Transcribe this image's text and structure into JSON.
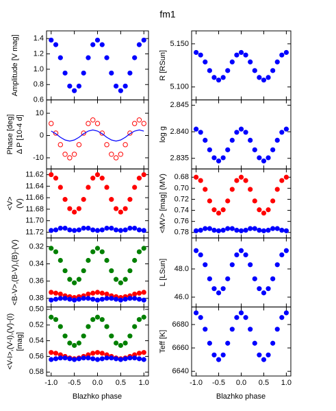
{
  "title": "fm1",
  "xlabel": "Blazhko phase",
  "xlim": [
    -1.1,
    1.1
  ],
  "xticks": [
    {
      "value": -1,
      "label": "-1.0"
    },
    {
      "value": -0.5,
      "label": "-0.5"
    },
    {
      "value": 0,
      "label": "0.0"
    },
    {
      "value": 0.5,
      "label": "0.5"
    },
    {
      "value": 1,
      "label": "1.0"
    }
  ],
  "x": [
    -1.0,
    -0.9,
    -0.8,
    -0.7,
    -0.6,
    -0.5,
    -0.4,
    -0.3,
    -0.2,
    -0.1,
    0.0,
    0.1,
    0.2,
    0.3,
    0.4,
    0.5,
    0.6,
    0.7,
    0.8,
    0.9,
    1.0
  ],
  "chart_data": [
    {
      "type": "scatter",
      "ylabel": [
        "Amplitude [V mag]"
      ],
      "ylim": [
        0.6,
        1.5
      ],
      "invert": false,
      "yticks": [
        0.6,
        0.8,
        {
          "value": 1,
          "label": "1.0"
        },
        1.2,
        1.4
      ],
      "series": [
        {
          "color": "#0000ff",
          "style": "dots",
          "values": [
            1.38,
            1.32,
            1.15,
            0.95,
            0.78,
            0.72,
            0.78,
            0.95,
            1.15,
            1.32,
            1.38,
            1.32,
            1.15,
            0.95,
            0.78,
            0.72,
            0.78,
            0.95,
            1.15,
            1.32,
            1.38
          ]
        }
      ]
    },
    {
      "type": "scatter",
      "ylabel": [
        "Phase [deg]",
        "Δ P [10-4 d]"
      ],
      "ylim": [
        -15,
        16
      ],
      "invert": false,
      "yticks": [
        -10,
        0,
        10
      ],
      "series": [
        {
          "color": "#ff0000",
          "style": "circles",
          "values": [
            5.4,
            1.1,
            -4.1,
            -8.4,
            -10,
            -8.4,
            -4.1,
            1.1,
            5.4,
            7,
            5.4,
            1.1,
            -4.1,
            -8.4,
            -10,
            -8.4,
            -4.1,
            1.1,
            5.4,
            7,
            5.4
          ]
        },
        {
          "color": "#0000ff",
          "style": "line",
          "values": [
            2.0,
            0.8,
            -0.8,
            -2.0,
            -2.5,
            -2.0,
            -0.8,
            0.8,
            2.0,
            2.5,
            2.0,
            0.8,
            -0.8,
            -2.0,
            -2.5,
            -2.0,
            -0.8,
            0.8,
            2.0,
            2.5,
            2.0
          ]
        }
      ]
    },
    {
      "type": "scatter",
      "ylabel": [
        "<V>",
        "(V)"
      ],
      "ylim": [
        11.61,
        11.73
      ],
      "invert": true,
      "yticks": [
        11.62,
        11.64,
        11.66,
        11.68,
        {
          "value": 11.7,
          "label": "11.70"
        },
        11.72
      ],
      "series": [
        {
          "color": "#ff0000",
          "style": "dots",
          "values": [
            11.62,
            11.626,
            11.642,
            11.663,
            11.679,
            11.685,
            11.679,
            11.663,
            11.642,
            11.626,
            11.62,
            11.626,
            11.642,
            11.663,
            11.679,
            11.685,
            11.679,
            11.663,
            11.642,
            11.626,
            11.62
          ]
        },
        {
          "color": "#0000ff",
          "style": "dots",
          "values": [
            11.717,
            11.716,
            11.713,
            11.713,
            11.716,
            11.717,
            11.716,
            11.713,
            11.713,
            11.716,
            11.717,
            11.716,
            11.713,
            11.713,
            11.716,
            11.717,
            11.716,
            11.713,
            11.713,
            11.716,
            11.717
          ]
        }
      ]
    },
    {
      "type": "scatter",
      "ylabel": [
        "<B-V>,(B-V),(B)-(V)"
      ],
      "ylim": [
        0.31,
        0.39
      ],
      "invert": true,
      "yticks": [
        0.32,
        0.34,
        0.36,
        0.38
      ],
      "series": [
        {
          "color": "#008000",
          "style": "dots",
          "values": [
            0.322,
            0.326,
            0.336,
            0.348,
            0.358,
            0.362,
            0.358,
            0.348,
            0.336,
            0.326,
            0.322,
            0.326,
            0.336,
            0.348,
            0.358,
            0.362,
            0.358,
            0.348,
            0.336,
            0.326,
            0.322
          ]
        },
        {
          "color": "#ff0000",
          "style": "dots",
          "values": [
            0.373,
            0.374,
            0.375,
            0.377,
            0.378,
            0.379,
            0.378,
            0.377,
            0.375,
            0.374,
            0.373,
            0.374,
            0.375,
            0.377,
            0.378,
            0.379,
            0.378,
            0.377,
            0.375,
            0.374,
            0.373
          ]
        },
        {
          "color": "#0000ff",
          "style": "dots",
          "values": [
            0.382,
            0.381,
            0.38,
            0.38,
            0.381,
            0.382,
            0.381,
            0.38,
            0.38,
            0.381,
            0.382,
            0.381,
            0.38,
            0.38,
            0.381,
            0.382,
            0.381,
            0.38,
            0.38,
            0.381,
            0.382
          ]
        }
      ]
    },
    {
      "type": "scatter",
      "ylabel": [
        "<V-I>,(V-I),(V)-(I)",
        "[mag]"
      ],
      "ylim": [
        0.497,
        0.585
      ],
      "invert": true,
      "yticks": [
        {
          "value": 0.5,
          "label": "0.50"
        },
        0.52,
        0.54,
        0.56,
        0.58
      ],
      "series": [
        {
          "color": "#008000",
          "style": "dots",
          "values": [
            0.51,
            0.513,
            0.522,
            0.534,
            0.543,
            0.546,
            0.543,
            0.534,
            0.522,
            0.513,
            0.51,
            0.513,
            0.522,
            0.534,
            0.543,
            0.546,
            0.543,
            0.534,
            0.522,
            0.513,
            0.51
          ]
        },
        {
          "color": "#ff0000",
          "style": "dots",
          "values": [
            0.555,
            0.556,
            0.558,
            0.56,
            0.562,
            0.563,
            0.562,
            0.56,
            0.558,
            0.556,
            0.555,
            0.556,
            0.558,
            0.56,
            0.562,
            0.563,
            0.562,
            0.56,
            0.558,
            0.556,
            0.555
          ]
        },
        {
          "color": "#0000ff",
          "style": "dots",
          "values": [
            0.564,
            0.563,
            0.562,
            0.562,
            0.563,
            0.564,
            0.563,
            0.562,
            0.562,
            0.563,
            0.564,
            0.563,
            0.562,
            0.562,
            0.563,
            0.564,
            0.563,
            0.562,
            0.562,
            0.563,
            0.564
          ]
        }
      ]
    },
    {
      "type": "scatter",
      "ylabel": [
        "R [RSun]"
      ],
      "ylim": [
        5.085,
        5.165
      ],
      "invert": false,
      "yticks": [
        {
          "value": 5.15,
          "label": "5.150"
        },
        {
          "value": 5.1,
          "label": "5.100"
        }
      ],
      "series": [
        {
          "color": "#0000ff",
          "style": "dots",
          "values": [
            5.14,
            5.137,
            5.129,
            5.119,
            5.111,
            5.108,
            5.111,
            5.119,
            5.129,
            5.137,
            5.14,
            5.137,
            5.129,
            5.119,
            5.111,
            5.108,
            5.111,
            5.119,
            5.129,
            5.137,
            5.14
          ]
        }
      ]
    },
    {
      "type": "scatter",
      "ylabel": [
        "log g"
      ],
      "ylim": [
        2.833,
        2.846
      ],
      "invert": false,
      "yticks": [
        2.845,
        {
          "value": 2.84,
          "label": "2.840"
        },
        2.835
      ],
      "series": [
        {
          "color": "#0000ff",
          "style": "dots",
          "values": [
            2.8405,
            2.8399,
            2.8384,
            2.8366,
            2.8351,
            2.8345,
            2.8351,
            2.8366,
            2.8384,
            2.8399,
            2.8405,
            2.8399,
            2.8384,
            2.8366,
            2.8351,
            2.8345,
            2.8351,
            2.8366,
            2.8384,
            2.8399,
            2.8405
          ]
        }
      ]
    },
    {
      "type": "scatter",
      "ylabel": [
        "<MV> [mag] (MV)"
      ],
      "ylim": [
        0.665,
        0.79
      ],
      "invert": true,
      "yticks": [
        0.68,
        {
          "value": 0.7,
          "label": "0.70"
        },
        0.72,
        0.74,
        0.76,
        0.78
      ],
      "series": [
        {
          "color": "#ff0000",
          "style": "dots",
          "values": [
            0.68,
            0.686,
            0.702,
            0.723,
            0.739,
            0.745,
            0.739,
            0.723,
            0.702,
            0.686,
            0.68,
            0.686,
            0.702,
            0.723,
            0.739,
            0.745,
            0.739,
            0.723,
            0.702,
            0.686,
            0.68
          ]
        },
        {
          "color": "#0000ff",
          "style": "dots",
          "values": [
            0.777,
            0.776,
            0.773,
            0.773,
            0.776,
            0.777,
            0.776,
            0.773,
            0.773,
            0.776,
            0.777,
            0.776,
            0.773,
            0.773,
            0.776,
            0.777,
            0.776,
            0.773,
            0.773,
            0.776,
            0.777
          ]
        }
      ]
    },
    {
      "type": "scatter",
      "ylabel": [
        "L [LSun]"
      ],
      "ylim": [
        45.3,
        50.2
      ],
      "invert": false,
      "yticks": [
        {
          "value": 48,
          "label": "48.0"
        },
        {
          "value": 46,
          "label": "46.0"
        }
      ],
      "series": [
        {
          "color": "#0000ff",
          "style": "dots",
          "values": [
            49.3,
            49.0,
            48.3,
            47.3,
            46.6,
            46.3,
            46.6,
            47.3,
            48.3,
            49.0,
            49.3,
            49.0,
            48.3,
            47.3,
            46.6,
            46.3,
            46.6,
            47.3,
            48.3,
            49.0,
            49.3
          ]
        }
      ]
    },
    {
      "type": "scatter",
      "ylabel": [
        "Teff [K]"
      ],
      "ylim": [
        6636,
        6695
      ],
      "invert": false,
      "yticks": [
        6680,
        6660,
        6640
      ],
      "series": [
        {
          "color": "#0000ff",
          "style": "dots",
          "values": [
            6690,
            6686,
            6676,
            6664,
            6654,
            6650,
            6654,
            6664,
            6676,
            6686,
            6690,
            6686,
            6676,
            6664,
            6654,
            6650,
            6654,
            6664,
            6676,
            6686,
            6690
          ]
        }
      ]
    }
  ]
}
